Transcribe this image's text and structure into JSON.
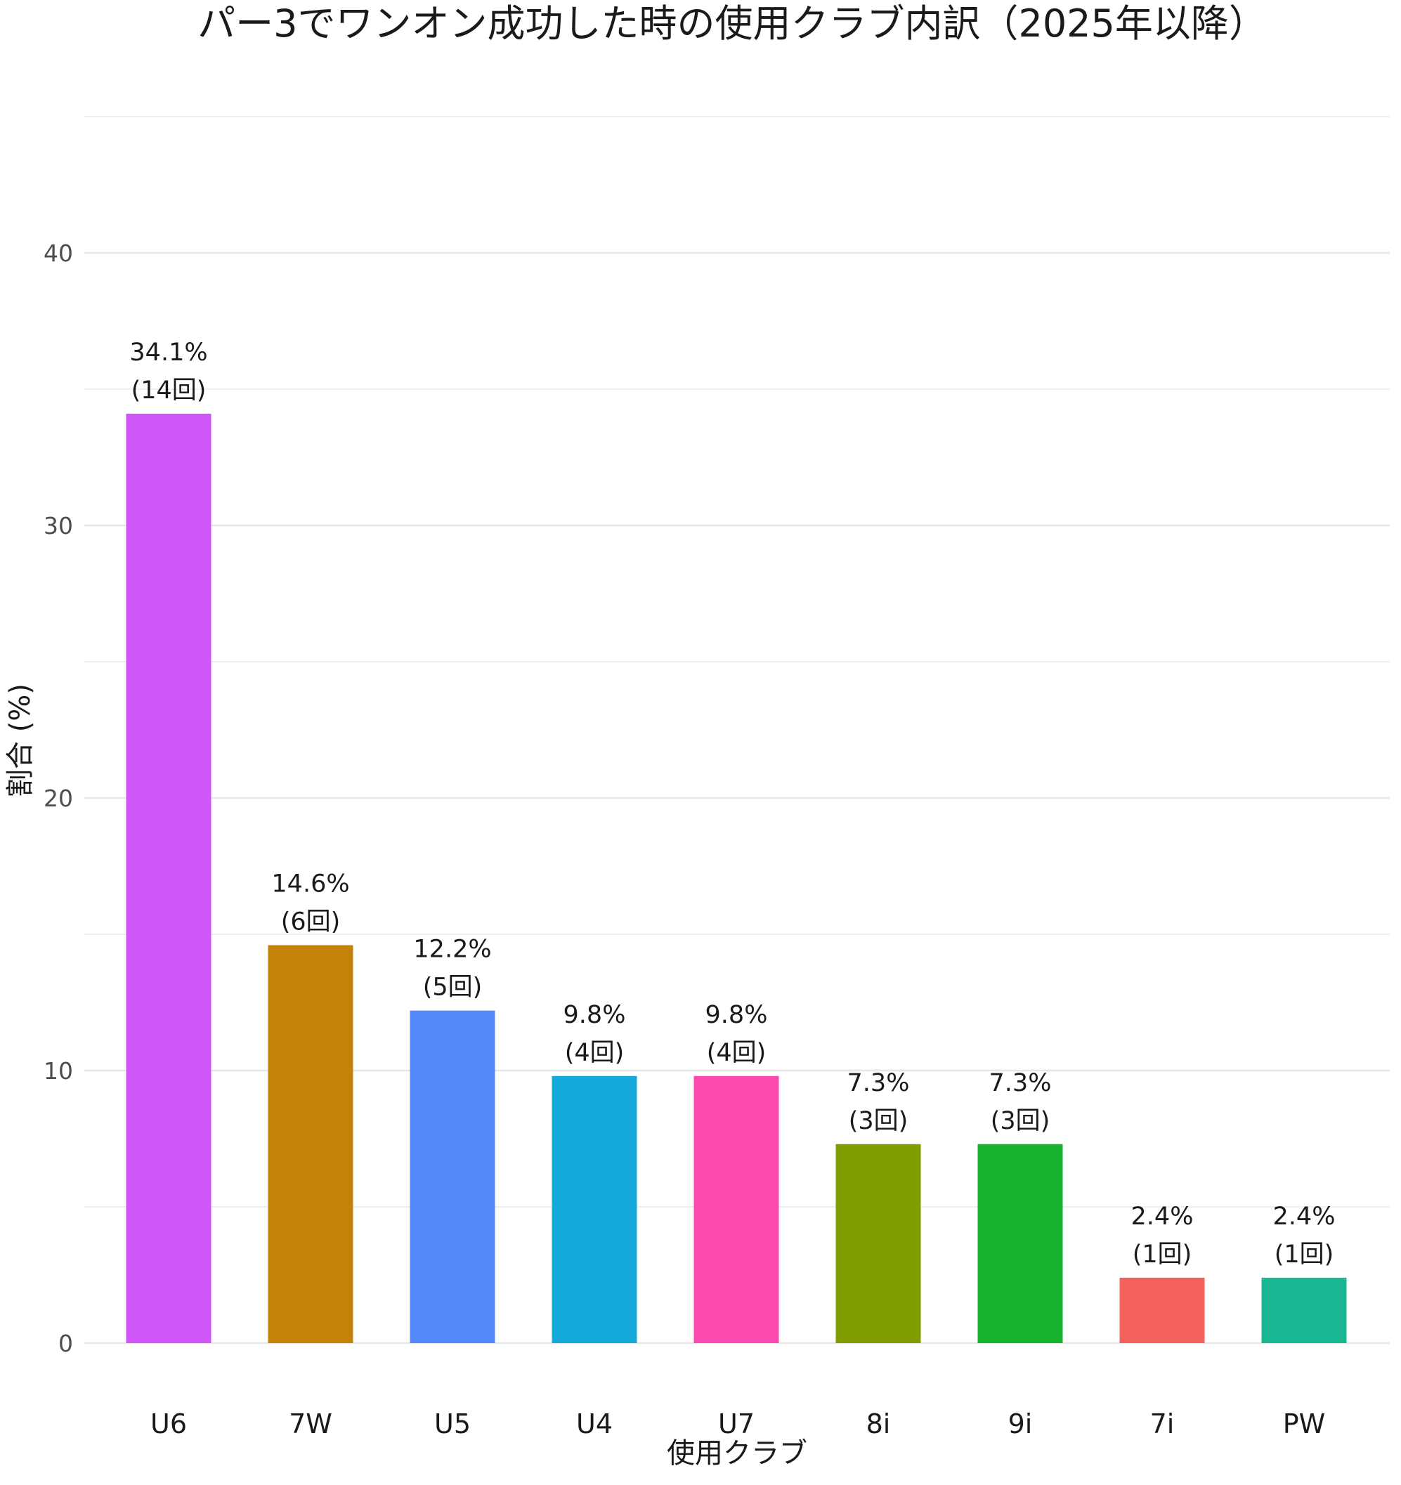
{
  "chart_data": {
    "type": "bar",
    "title": "パー3でワンオン成功した時の使用クラブ内訳（2025年以降）",
    "xlabel": "使用クラブ",
    "ylabel": "割合 (%)",
    "ylim": [
      0,
      45
    ],
    "yticks": [
      0,
      10,
      20,
      30,
      40
    ],
    "grid": true,
    "legend": "none",
    "categories": [
      "U6",
      "7W",
      "U5",
      "U4",
      "U7",
      "8i",
      "9i",
      "7i",
      "PW"
    ],
    "values": [
      34.1,
      14.6,
      12.2,
      9.8,
      9.8,
      7.3,
      7.3,
      2.4,
      2.4
    ],
    "labels_pct": [
      "34.1%",
      "14.6%",
      "12.2%",
      "9.8%",
      "9.8%",
      "7.3%",
      "7.3%",
      "2.4%",
      "2.4%"
    ],
    "labels_count": [
      "(14回)",
      "(6回)",
      "(5回)",
      "(4回)",
      "(4回)",
      "(3回)",
      "(3回)",
      "(1回)",
      "(1回)"
    ],
    "colors": [
      "#CF55F9",
      "#C58208",
      "#5488FB",
      "#14AADA",
      "#FB49AF",
      "#819E01",
      "#17B22E",
      "#F2625B",
      "#19B892"
    ]
  }
}
